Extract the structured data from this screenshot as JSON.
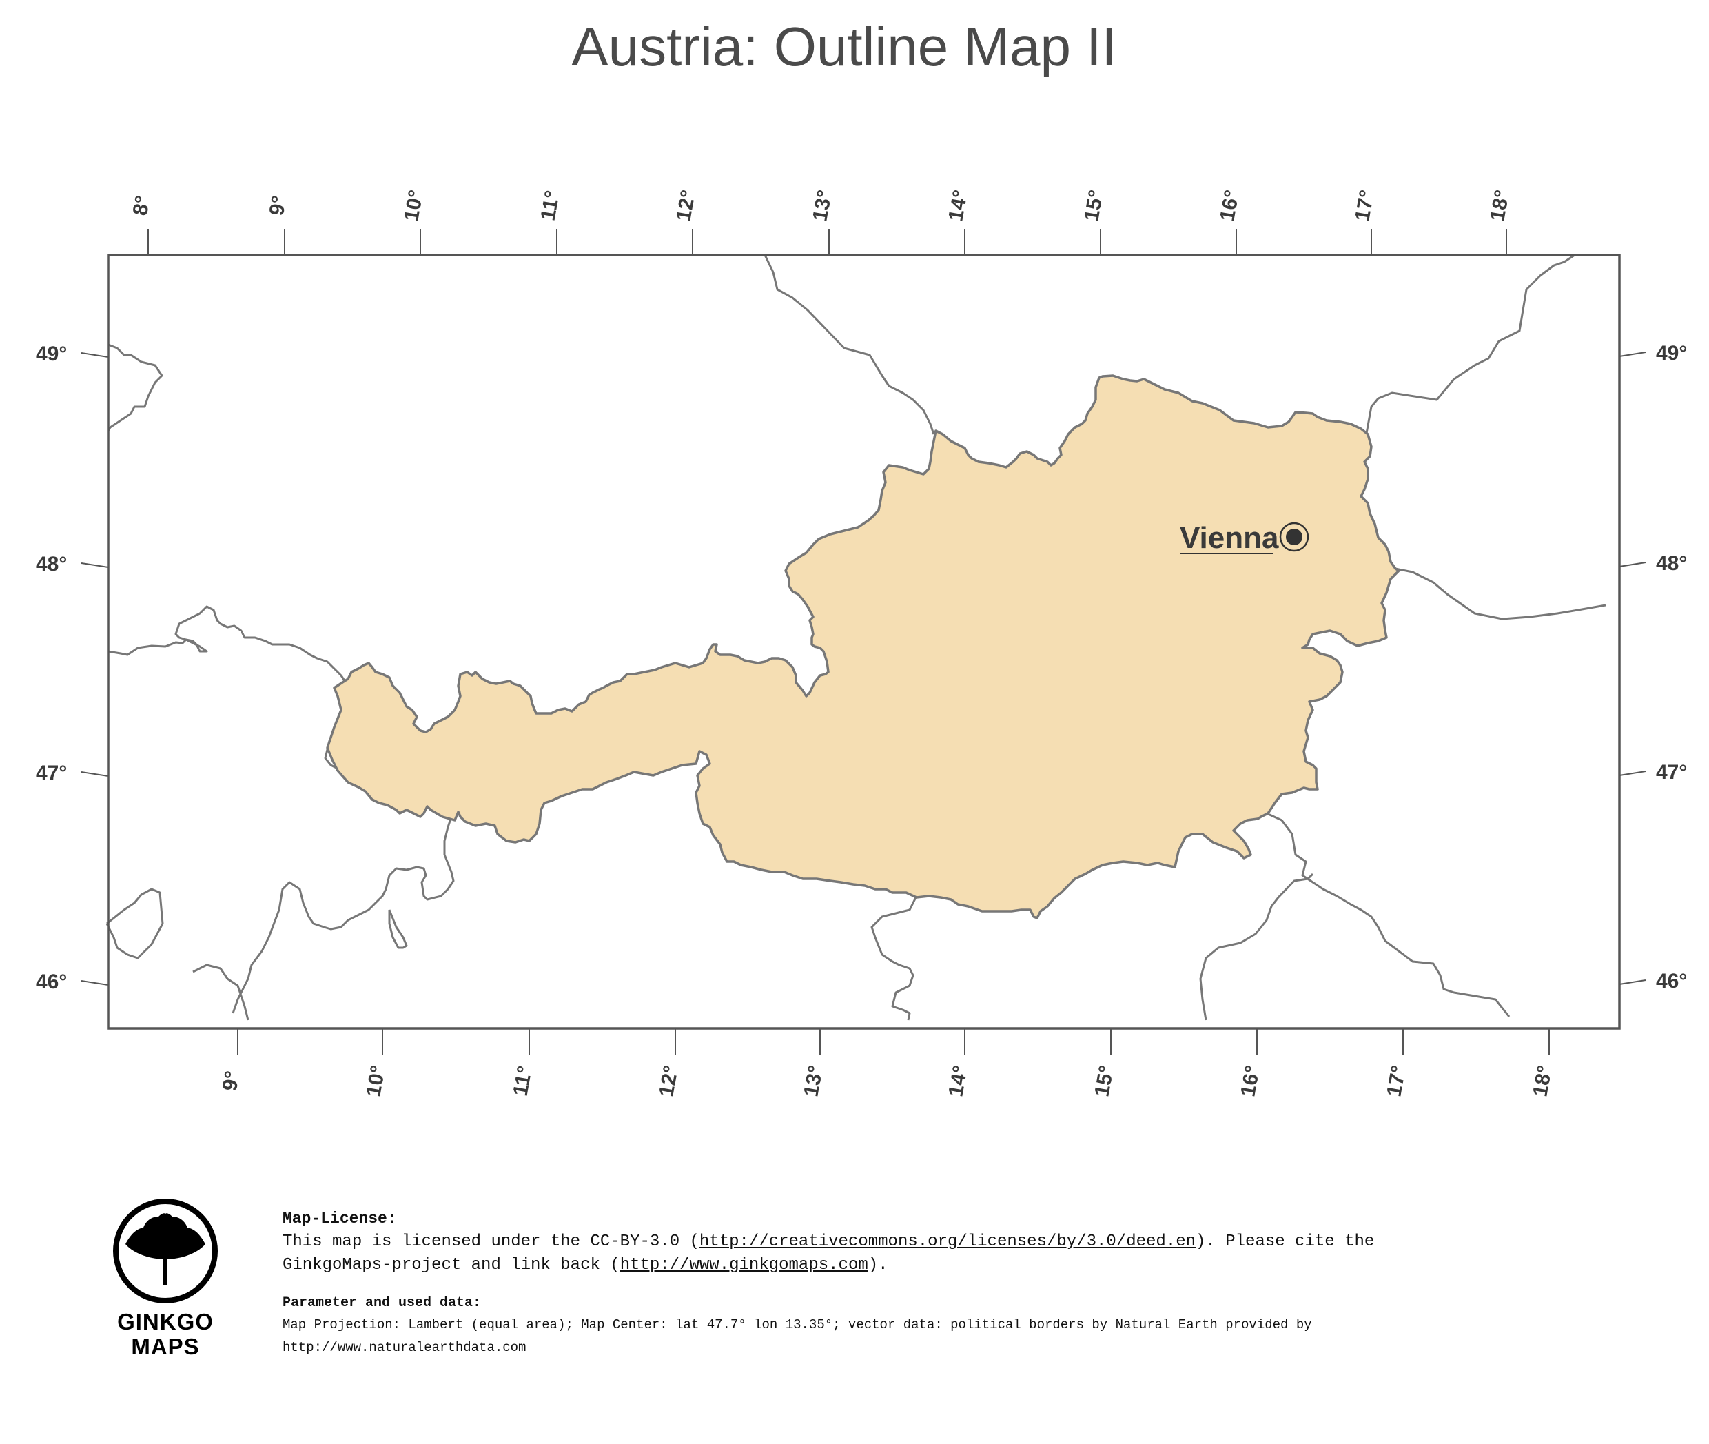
{
  "title": "Austria: Outline Map II",
  "map": {
    "country": "Austria",
    "fill_color": "#f5deb3",
    "border_color": "#777777",
    "top_longitude_labels": [
      "8",
      "9",
      "10",
      "11",
      "12",
      "13",
      "14",
      "15",
      "16",
      "17",
      "18"
    ],
    "bottom_longitude_labels": [
      "9",
      "10",
      "11",
      "12",
      "13",
      "14",
      "15",
      "16",
      "17",
      "18"
    ],
    "left_latitude_labels": [
      "49",
      "48",
      "47",
      "46"
    ],
    "right_latitude_labels": [
      "49",
      "48",
      "47",
      "46"
    ],
    "degree_symbol": "°",
    "capital": {
      "name": "Vienna",
      "lat": 48.2,
      "lon": 16.37
    }
  },
  "license": {
    "heading": "Map-License:",
    "line1_prefix": "This map is licensed under the CC-BY-3.0 (",
    "line1_link": "http://creativecommons.org/licenses/by/3.0/deed.en",
    "line1_suffix": ").  Please cite the",
    "line2_prefix": "GinkgoMaps-project and link back (",
    "line2_link": "http://www.ginkgomaps.com",
    "line2_suffix": ")."
  },
  "parameters": {
    "heading": "Parameter and used data:",
    "text": "Map Projection: Lambert (equal area); Map Center: lat 47.7° lon 13.35°; vector data: political borders by Natural Earth provided by",
    "link": "http://www.naturalearthdata.com"
  },
  "logo": {
    "line1": "GINKGO",
    "line2": "MAPS"
  }
}
